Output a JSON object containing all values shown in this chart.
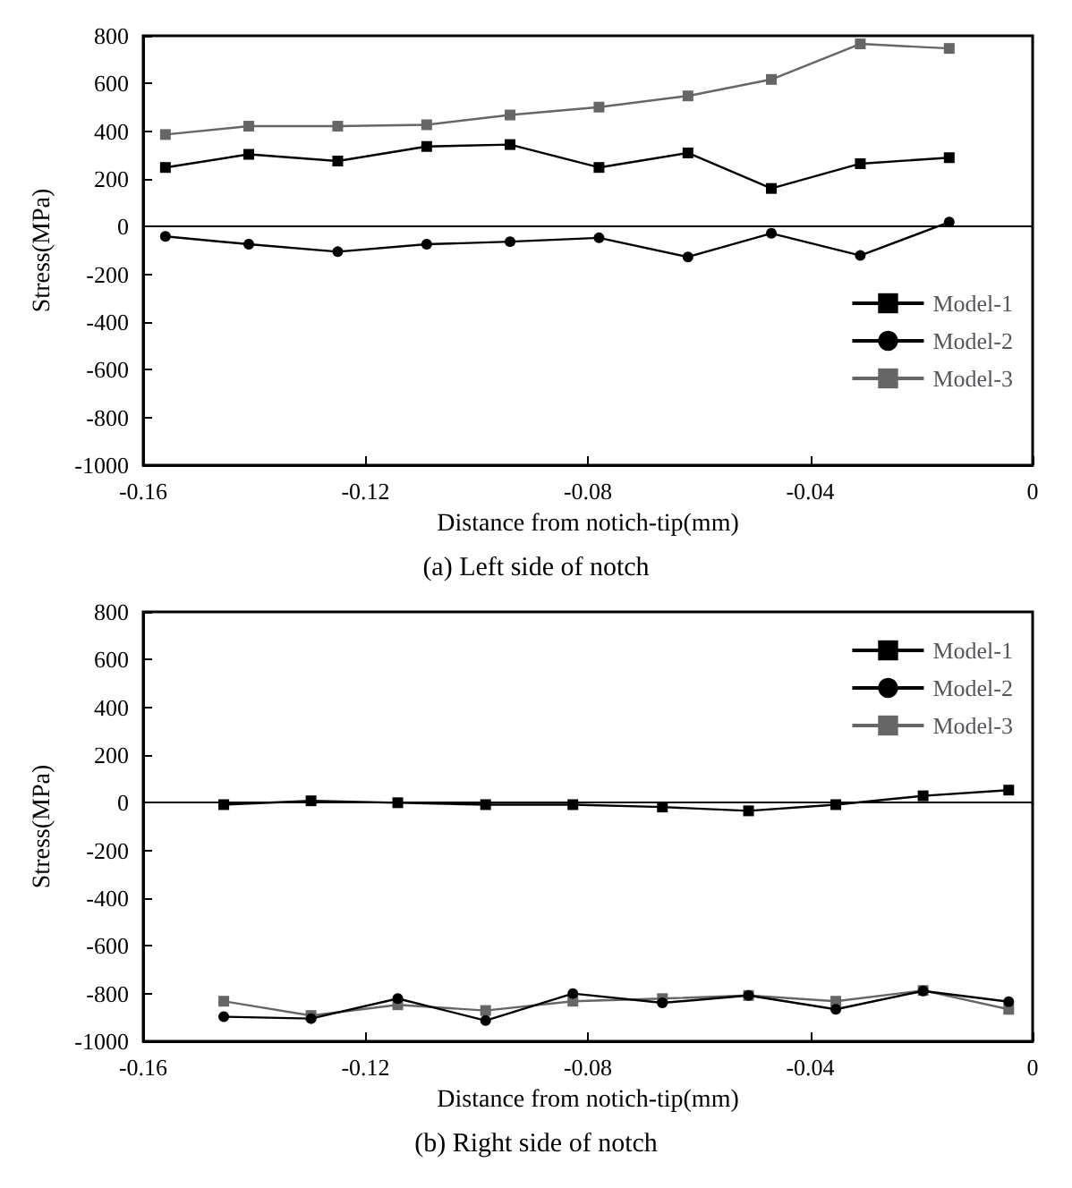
{
  "chart_data": [
    {
      "type": "line",
      "title": "(a) Left side of notch",
      "xlabel": "Distance from notich-tip(mm)",
      "ylabel": "Stress(MPa)",
      "xlim": [
        -0.16,
        0
      ],
      "xticks": [
        -0.16,
        -0.12,
        -0.08,
        -0.04,
        0
      ],
      "ylim": [
        -1000,
        800
      ],
      "yticks": [
        -1000,
        -800,
        -600,
        -400,
        -200,
        0,
        200,
        400,
        600,
        800
      ],
      "legend": "right",
      "grid": false,
      "ref_lines": [
        {
          "axis": "y",
          "value": 0,
          "color": "#000000"
        }
      ],
      "series": [
        {
          "name": "Model-1",
          "color": "#000000",
          "marker": "square",
          "x": [
            -0.156,
            -0.141,
            -0.125,
            -0.109,
            -0.094,
            -0.078,
            -0.062,
            -0.047,
            -0.031,
            -0.015
          ],
          "values": [
            248,
            303,
            275,
            336,
            344,
            248,
            309,
            160,
            264,
            289
          ]
        },
        {
          "name": "Model-2",
          "color": "#000000",
          "marker": "circle",
          "x": [
            -0.156,
            -0.141,
            -0.125,
            -0.109,
            -0.094,
            -0.078,
            -0.062,
            -0.047,
            -0.031,
            -0.015
          ],
          "values": [
            -41,
            -74,
            -105,
            -74,
            -63,
            -47,
            -127,
            -28,
            -121,
            19
          ]
        },
        {
          "name": "Model-3",
          "color": "#666666",
          "marker": "square",
          "x": [
            -0.156,
            -0.141,
            -0.125,
            -0.109,
            -0.094,
            -0.078,
            -0.062,
            -0.047,
            -0.031,
            -0.015
          ],
          "values": [
            386,
            421,
            421,
            427,
            468,
            501,
            548,
            617,
            766,
            747
          ]
        }
      ]
    },
    {
      "type": "line",
      "title": "(b) Right side of notch",
      "xlabel": "Distance from notich-tip(mm)",
      "ylabel": "Stress(MPa)",
      "xlim": [
        -0.16,
        0
      ],
      "xticks": [
        -0.16,
        -0.12,
        -0.08,
        -0.04,
        0
      ],
      "ylim": [
        -1000,
        800
      ],
      "yticks": [
        -1000,
        -800,
        -600,
        -400,
        -200,
        0,
        200,
        400,
        600,
        800
      ],
      "legend": "top right",
      "grid": false,
      "ref_lines": [
        {
          "axis": "y",
          "value": 0,
          "color": "#000000"
        }
      ],
      "series": [
        {
          "name": "Model-1",
          "color": "#000000",
          "marker": "square",
          "x": [
            -0.1455,
            -0.1298,
            -0.1142,
            -0.0984,
            -0.0827,
            -0.0666,
            -0.0511,
            -0.0354,
            -0.0197,
            -0.0043
          ],
          "values": [
            -8,
            8,
            0,
            -8,
            -8,
            -18,
            -34,
            -8,
            29,
            53
          ]
        },
        {
          "name": "Model-2",
          "color": "#000000",
          "marker": "circle",
          "x": [
            -0.1455,
            -0.1298,
            -0.1142,
            -0.0984,
            -0.0827,
            -0.0666,
            -0.0511,
            -0.0354,
            -0.0197,
            -0.0043
          ],
          "values": [
            -897,
            -905,
            -821,
            -913,
            -800,
            -839,
            -808,
            -866,
            -789,
            -834
          ]
        },
        {
          "name": "Model-3",
          "color": "#666666",
          "marker": "square",
          "x": [
            -0.1455,
            -0.1298,
            -0.1142,
            -0.0984,
            -0.0827,
            -0.0666,
            -0.0511,
            -0.0354,
            -0.0197,
            -0.0043
          ],
          "values": [
            -832,
            -892,
            -847,
            -871,
            -832,
            -821,
            -808,
            -832,
            -787,
            -866
          ]
        }
      ]
    }
  ]
}
